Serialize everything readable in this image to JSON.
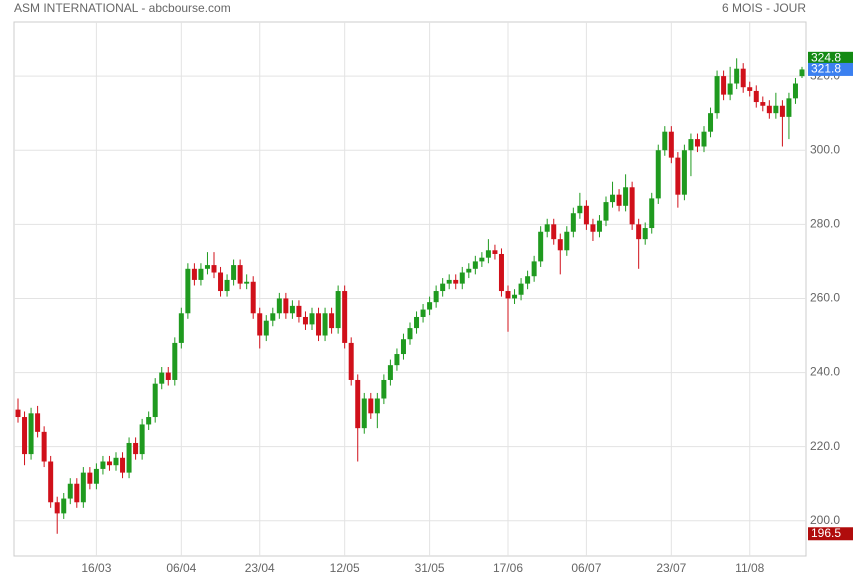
{
  "chart_data": {
    "type": "candlestick",
    "title": "ASM INTERNATIONAL - abcbourse.com",
    "subtitle": "6 MOIS - JOUR",
    "categories": [
      null,
      null,
      null,
      null,
      null,
      null,
      null,
      null,
      null,
      null,
      null,
      null,
      "16/03",
      null,
      null,
      null,
      null,
      null,
      null,
      null,
      null,
      null,
      null,
      null,
      null,
      "06/04",
      null,
      null,
      null,
      null,
      null,
      null,
      null,
      null,
      null,
      null,
      null,
      "23/04",
      null,
      null,
      null,
      null,
      null,
      null,
      null,
      null,
      null,
      null,
      null,
      null,
      "12/05",
      null,
      null,
      null,
      null,
      null,
      null,
      null,
      null,
      null,
      null,
      null,
      null,
      "31/05",
      null,
      null,
      null,
      null,
      null,
      null,
      null,
      null,
      null,
      null,
      null,
      "17/06",
      null,
      null,
      null,
      null,
      null,
      null,
      null,
      null,
      null,
      null,
      null,
      "06/07",
      null,
      null,
      null,
      null,
      null,
      null,
      null,
      null,
      null,
      null,
      null,
      null,
      "23/07",
      null,
      null,
      null,
      null,
      null,
      null,
      null,
      null,
      null,
      null,
      null,
      "11/08",
      null,
      null,
      null,
      null,
      null,
      null,
      null,
      null
    ],
    "ohlc": [
      [
        230,
        233,
        226.5,
        228
      ],
      [
        228,
        229.5,
        215,
        218
      ],
      [
        218,
        230.5,
        216.5,
        229
      ],
      [
        229,
        231,
        222.5,
        224
      ],
      [
        224,
        225.5,
        214.5,
        216
      ],
      [
        216,
        217.5,
        203.5,
        205
      ],
      [
        205,
        206.5,
        196.5,
        202
      ],
      [
        202,
        207.5,
        200.5,
        206
      ],
      [
        206,
        211.5,
        204.5,
        210
      ],
      [
        210,
        211.5,
        203.5,
        205
      ],
      [
        205,
        214.5,
        203.5,
        213
      ],
      [
        213,
        214.5,
        208.5,
        210
      ],
      [
        210,
        215.5,
        208.5,
        214
      ],
      [
        214,
        217.5,
        212.5,
        216
      ],
      [
        216,
        217.5,
        213.5,
        215
      ],
      [
        215,
        218.5,
        213.5,
        217
      ],
      [
        217,
        218.5,
        211.5,
        213
      ],
      [
        213,
        222.5,
        211.5,
        221
      ],
      [
        221,
        222.5,
        216.5,
        218
      ],
      [
        218,
        227.5,
        216.5,
        226
      ],
      [
        226,
        229.5,
        224.5,
        228
      ],
      [
        228,
        238.5,
        226.5,
        237
      ],
      [
        237,
        241.5,
        235.5,
        240
      ],
      [
        240,
        241.5,
        236.5,
        238
      ],
      [
        238,
        249.5,
        236.5,
        248
      ],
      [
        248,
        257.5,
        246.5,
        256
      ],
      [
        256,
        269.5,
        254.5,
        268
      ],
      [
        268,
        269.5,
        263.5,
        265
      ],
      [
        265,
        269.5,
        263.5,
        268
      ],
      [
        268,
        272.5,
        266.5,
        269
      ],
      [
        269,
        272.5,
        265.5,
        267
      ],
      [
        267,
        268.5,
        260.5,
        262
      ],
      [
        262,
        266.5,
        260.5,
        265
      ],
      [
        265,
        270.5,
        263.5,
        269
      ],
      [
        269,
        270.5,
        262.5,
        264
      ],
      [
        264,
        266.5,
        262.5,
        264.5
      ],
      [
        264.5,
        266,
        254.5,
        256
      ],
      [
        256,
        257.5,
        246.5,
        250
      ],
      [
        250,
        255.5,
        248.5,
        254
      ],
      [
        254,
        257.5,
        252.5,
        256
      ],
      [
        256,
        261.5,
        254.5,
        260
      ],
      [
        260,
        261.5,
        254.5,
        256
      ],
      [
        256,
        259.5,
        254.5,
        258
      ],
      [
        258,
        259.5,
        253.5,
        255
      ],
      [
        255,
        256.5,
        251.5,
        253
      ],
      [
        253,
        257.5,
        251.5,
        256
      ],
      [
        256,
        257.5,
        248.5,
        250
      ],
      [
        250,
        257.5,
        248.5,
        256
      ],
      [
        256,
        257.5,
        250.5,
        252
      ],
      [
        252,
        263.5,
        250.5,
        262
      ],
      [
        262,
        263.5,
        246.5,
        248
      ],
      [
        248,
        249.5,
        236.5,
        238
      ],
      [
        238,
        239.5,
        216,
        225
      ],
      [
        225,
        234.5,
        223.5,
        233
      ],
      [
        233,
        234.5,
        227.5,
        229
      ],
      [
        229,
        234.5,
        225,
        233
      ],
      [
        233,
        239.5,
        231.5,
        238
      ],
      [
        238,
        243.5,
        236.5,
        242
      ],
      [
        242,
        246.5,
        240.5,
        245
      ],
      [
        245,
        250.5,
        243.5,
        249
      ],
      [
        249,
        253.5,
        247.5,
        252
      ],
      [
        252,
        256.5,
        250.5,
        255
      ],
      [
        255,
        258.5,
        253.5,
        257
      ],
      [
        257,
        260.5,
        255.5,
        259
      ],
      [
        259,
        263.5,
        257.5,
        262
      ],
      [
        262,
        265.5,
        260.5,
        264
      ],
      [
        264,
        266.5,
        262.5,
        265
      ],
      [
        265,
        266.5,
        262.5,
        264
      ],
      [
        264,
        268.5,
        262.5,
        267
      ],
      [
        267,
        269.5,
        265.5,
        268
      ],
      [
        268,
        271.5,
        266.5,
        270
      ],
      [
        270,
        272.5,
        268.5,
        271
      ],
      [
        271,
        276,
        269.5,
        273
      ],
      [
        273,
        274.5,
        270.5,
        272
      ],
      [
        272,
        273.5,
        260.5,
        262
      ],
      [
        262,
        263.5,
        251,
        260
      ],
      [
        260,
        262.5,
        258.5,
        261
      ],
      [
        261,
        265.5,
        259.5,
        264
      ],
      [
        264,
        267.5,
        262.5,
        266
      ],
      [
        266,
        271.5,
        264.5,
        270
      ],
      [
        270,
        279.5,
        268.5,
        278
      ],
      [
        278,
        281.5,
        276.5,
        280
      ],
      [
        280,
        281.5,
        274.5,
        276
      ],
      [
        276,
        277.5,
        266.5,
        273
      ],
      [
        273,
        279.5,
        271.5,
        278
      ],
      [
        278,
        284.5,
        276.5,
        283
      ],
      [
        283,
        288.5,
        281.5,
        285
      ],
      [
        285,
        286.5,
        278.5,
        280
      ],
      [
        280,
        281.5,
        275.5,
        278
      ],
      [
        278,
        282.5,
        276.5,
        281
      ],
      [
        281,
        287.5,
        279.5,
        286
      ],
      [
        286,
        291.5,
        284.5,
        288
      ],
      [
        288,
        289.5,
        283.5,
        285
      ],
      [
        285,
        293.5,
        283.5,
        290
      ],
      [
        290,
        291.5,
        278.5,
        280
      ],
      [
        280,
        281.5,
        268,
        276
      ],
      [
        276,
        280.5,
        274.5,
        279
      ],
      [
        279,
        288.5,
        277.5,
        287
      ],
      [
        287,
        301.5,
        285.5,
        300
      ],
      [
        300,
        306.5,
        298.5,
        305
      ],
      [
        305,
        306.5,
        296.5,
        298
      ],
      [
        298,
        299.5,
        284.5,
        288
      ],
      [
        288,
        301.5,
        286.5,
        300
      ],
      [
        300,
        304.5,
        293,
        303
      ],
      [
        303,
        304.5,
        299.5,
        301
      ],
      [
        301,
        306.5,
        299.5,
        305
      ],
      [
        305,
        311.5,
        303.5,
        310
      ],
      [
        310,
        321.5,
        308.5,
        320
      ],
      [
        320,
        321.5,
        313.5,
        315
      ],
      [
        315,
        322.5,
        313.5,
        318
      ],
      [
        318,
        324.8,
        316.5,
        322
      ],
      [
        322,
        323.5,
        315.5,
        317
      ],
      [
        317,
        318.5,
        314.5,
        316
      ],
      [
        316,
        317.5,
        311.5,
        313
      ],
      [
        313,
        314.5,
        310.5,
        312
      ],
      [
        312,
        313.5,
        308.5,
        310
      ],
      [
        310,
        315.5,
        308.5,
        312
      ],
      [
        312,
        313.5,
        301,
        309
      ],
      [
        309,
        315.5,
        303,
        314
      ],
      [
        314,
        319.5,
        312.5,
        318
      ],
      [
        320,
        322.5,
        319.5,
        321.8
      ]
    ],
    "up_color": "#1f9a1f",
    "down_color": "#d0101a",
    "ylim": [
      190.5,
      334.6
    ],
    "yticks": [
      {
        "value": 200,
        "label": "200.0"
      },
      {
        "value": 220,
        "label": "220.0"
      },
      {
        "value": 240,
        "label": "240.0"
      },
      {
        "value": 260,
        "label": "260.0"
      },
      {
        "value": 280,
        "label": "280.0"
      },
      {
        "value": 300,
        "label": "300.0"
      },
      {
        "value": 320,
        "label": "320.0"
      }
    ],
    "grid": true,
    "price_labels": [
      {
        "value": 324.8,
        "color": "#138a13"
      },
      {
        "value": 321.8,
        "color": "#3b80f0"
      },
      {
        "value": 196.5,
        "color": "#b00c0c"
      }
    ]
  }
}
